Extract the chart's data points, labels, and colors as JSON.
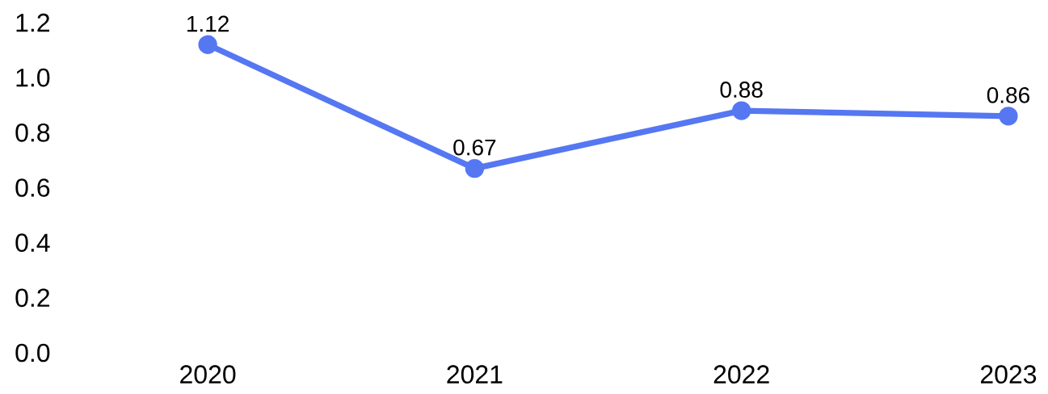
{
  "chart_data": {
    "type": "line",
    "categories": [
      "2020",
      "2021",
      "2022",
      "2023"
    ],
    "series": [
      {
        "color": "#5677f2",
        "values": [
          1.12,
          0.67,
          0.88,
          0.86
        ]
      }
    ],
    "ylim": [
      0,
      1.2
    ],
    "yticks": [
      {
        "value": 0,
        "label": "0.0"
      },
      {
        "value": 0.2,
        "label": "0.2"
      },
      {
        "value": 0.4,
        "label": "0.4"
      },
      {
        "value": 0.6,
        "label": "0.6"
      },
      {
        "value": 0.8,
        "label": "0.8"
      },
      {
        "value": 1.0,
        "label": "1.0"
      },
      {
        "value": 1.2,
        "label": "1.2"
      }
    ],
    "data_labels": true,
    "marker": "circle",
    "line_style": "solid"
  }
}
